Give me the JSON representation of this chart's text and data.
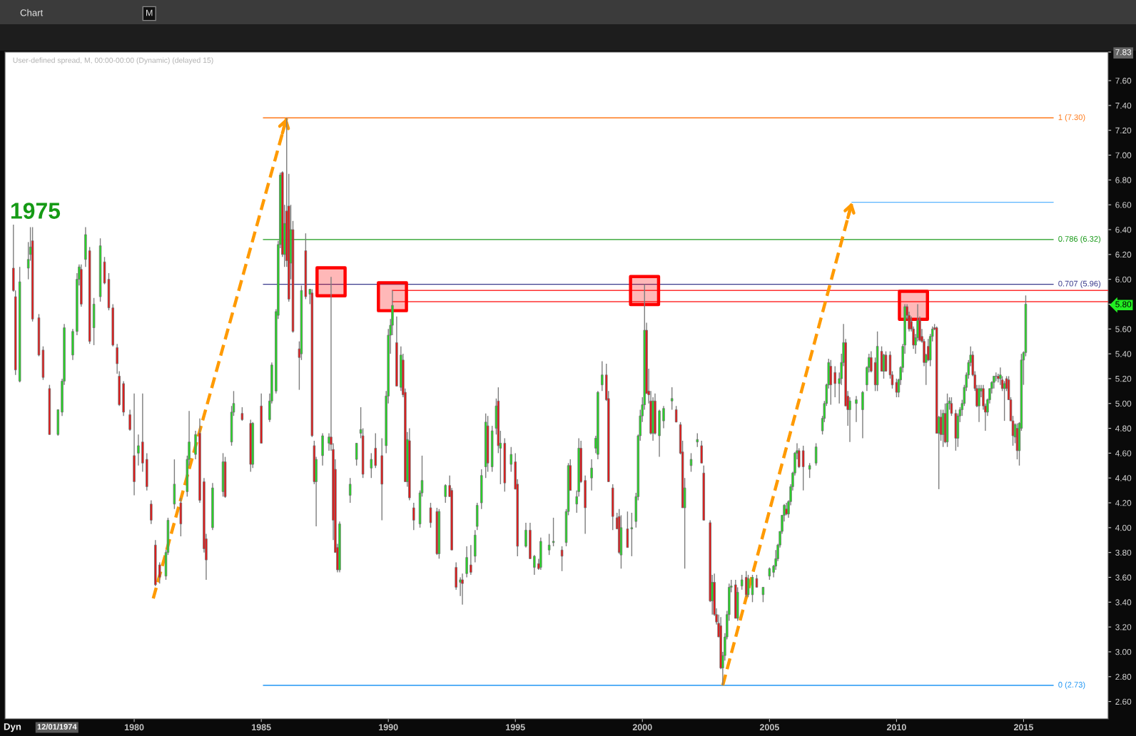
{
  "chart_data": {
    "type": "candlestick",
    "title": "User-defined spread, M, 00:00-00:00 (Dynamic) (delayed 15)",
    "annotations": [
      "1975",
      "Chart",
      "M",
      "Dyn",
      "12/01/1974"
    ],
    "x": [
      "1975-04",
      "1975-05",
      "1975-07",
      "1975-11",
      "1975-12",
      "1976-01",
      "1976-04",
      "1976-06",
      "1976-09",
      "1977-01",
      "1977-03",
      "1977-04",
      "1977-08",
      "1977-10",
      "1977-11",
      "1977-12",
      "1978-02",
      "1978-04",
      "1978-06",
      "1978-09",
      "1978-11",
      "1979-01",
      "1979-03",
      "1979-05",
      "1979-06",
      "1979-08",
      "1979-11",
      "1980-01",
      "1980-03",
      "1980-05",
      "1980-07",
      "1980-09",
      "1980-11",
      "1981-01",
      "1981-04",
      "1981-05",
      "1981-08",
      "1981-11",
      "1982-02",
      "1982-03",
      "1982-06",
      "1982-08",
      "1982-10",
      "1982-11",
      "1983-02",
      "1983-07",
      "1983-08",
      "1983-11",
      "1983-12",
      "1984-04",
      "1984-08",
      "1984-09",
      "1985-01",
      "1985-05",
      "1985-06",
      "1985-08",
      "1985-09",
      "1985-10",
      "1985-11",
      "1985-12",
      "1986-01",
      "1986-02",
      "1986-03",
      "1986-04",
      "1986-07",
      "1986-08",
      "1986-10",
      "1986-12",
      "1987-01",
      "1987-02",
      "1987-03",
      "1987-06",
      "1987-09",
      "1987-10",
      "1987-11",
      "1987-12",
      "1988-01",
      "1988-02",
      "1988-07",
      "1988-10",
      "1988-12",
      "1989-01",
      "1989-05",
      "1989-07",
      "1989-10",
      "1989-12",
      "1990-01",
      "1990-02",
      "1990-03",
      "1990-05",
      "1990-07",
      "1990-08",
      "1990-09",
      "1990-10",
      "1990-11",
      "1991-01",
      "1991-04",
      "1991-05",
      "1991-09",
      "1991-12",
      "1992-01",
      "1992-04",
      "1992-06",
      "1992-07",
      "1992-09",
      "1992-11",
      "1992-12",
      "1993-02",
      "1993-04",
      "1993-06",
      "1993-07",
      "1993-09",
      "1993-11",
      "1993-12",
      "1994-02",
      "1994-04",
      "1994-05",
      "1994-06",
      "1994-08",
      "1994-11",
      "1995-01",
      "1995-02",
      "1995-06",
      "1995-08",
      "1995-10",
      "1995-12",
      "1996-01",
      "1996-05",
      "1996-07",
      "1996-11",
      "1997-01",
      "1997-02",
      "1997-03",
      "1997-06",
      "1997-07",
      "1997-08",
      "1997-10",
      "1998-01",
      "1998-03",
      "1998-04",
      "1998-06",
      "1998-08",
      "1998-09",
      "1998-11",
      "1999-01",
      "1999-02",
      "1999-03",
      "1999-06",
      "1999-08",
      "1999-10",
      "1999-11",
      "1999-12",
      "2000-01",
      "2000-02",
      "2000-03",
      "2000-04",
      "2000-05",
      "2000-06",
      "2000-07",
      "2000-09",
      "2000-11",
      "2001-03",
      "2001-05",
      "2001-07",
      "2001-08",
      "2001-09",
      "2001-12",
      "2002-03",
      "2002-05",
      "2002-06",
      "2002-09",
      "2002-10",
      "2002-11",
      "2002-12",
      "2003-01",
      "2003-02",
      "2003-03",
      "2003-04",
      "2003-05",
      "2003-06",
      "2003-07",
      "2003-09",
      "2003-10",
      "2003-12",
      "2004-02",
      "2004-03",
      "2004-05",
      "2004-07",
      "2004-10",
      "2005-01",
      "2005-03",
      "2005-04",
      "2005-05",
      "2005-06",
      "2005-07",
      "2005-08",
      "2005-09",
      "2005-10",
      "2005-11",
      "2005-12",
      "2006-01",
      "2006-02",
      "2006-03",
      "2006-05",
      "2006-08",
      "2006-11",
      "2007-02",
      "2007-03",
      "2007-04",
      "2007-05",
      "2007-06",
      "2007-08",
      "2007-10",
      "2007-11",
      "2007-12",
      "2008-01",
      "2008-02",
      "2008-03",
      "2008-06",
      "2008-09",
      "2008-11",
      "2008-12",
      "2009-01",
      "2009-03",
      "2009-04",
      "2009-06",
      "2009-07",
      "2009-08",
      "2009-10",
      "2009-11",
      "2010-01",
      "2010-02",
      "2010-03",
      "2010-04",
      "2010-05",
      "2010-06",
      "2010-07",
      "2010-08",
      "2010-09",
      "2010-10",
      "2010-11",
      "2010-12",
      "2011-01",
      "2011-02",
      "2011-03",
      "2011-04",
      "2011-05",
      "2011-06",
      "2011-07",
      "2011-08",
      "2011-09",
      "2011-10",
      "2011-11",
      "2011-12",
      "2012-01",
      "2012-02",
      "2012-03",
      "2012-05",
      "2012-06",
      "2012-07",
      "2012-08",
      "2012-09",
      "2012-10",
      "2012-11",
      "2012-12",
      "2013-01",
      "2013-02",
      "2013-03",
      "2013-04",
      "2013-05",
      "2013-06",
      "2013-07",
      "2013-08",
      "2013-09",
      "2013-10",
      "2013-11",
      "2013-12",
      "2014-01",
      "2014-02",
      "2014-03",
      "2014-04",
      "2014-05",
      "2014-06",
      "2014-07",
      "2014-08",
      "2014-09",
      "2014-10",
      "2014-11",
      "2014-12",
      "2015-01",
      "2015-02"
    ],
    "ohlc": [
      [
        6.09,
        6.44,
        5.9,
        5.91
      ],
      [
        5.86,
        5.91,
        5.23,
        5.27
      ],
      [
        5.18,
        6.1,
        5.17,
        5.98
      ],
      [
        6.09,
        6.3,
        6.0,
        6.16
      ],
      [
        6.2,
        6.42,
        6.15,
        6.26
      ],
      [
        6.31,
        6.42,
        5.66,
        5.68
      ],
      [
        5.69,
        5.72,
        5.38,
        5.39
      ],
      [
        5.43,
        5.46,
        5.19,
        5.21
      ],
      [
        5.12,
        5.15,
        4.75,
        4.75
      ],
      [
        4.75,
        4.95,
        4.74,
        4.95
      ],
      [
        4.93,
        5.2,
        4.9,
        5.18
      ],
      [
        5.18,
        5.64,
        5.15,
        5.61
      ],
      [
        5.39,
        5.6,
        5.35,
        5.58
      ],
      [
        5.58,
        6.05,
        5.55,
        6.0
      ],
      [
        6.0,
        6.12,
        5.95,
        6.1
      ],
      [
        6.08,
        6.12,
        5.78,
        5.8
      ],
      [
        6.16,
        6.42,
        6.1,
        6.36
      ],
      [
        6.23,
        6.26,
        5.48,
        5.5
      ],
      [
        5.61,
        5.85,
        5.47,
        5.8
      ],
      [
        5.86,
        6.33,
        5.82,
        6.27
      ],
      [
        6.14,
        6.18,
        5.96,
        5.97
      ],
      [
        6.0,
        6.05,
        5.75,
        5.77
      ],
      [
        5.77,
        5.8,
        5.46,
        5.47
      ],
      [
        5.45,
        5.48,
        5.24,
        5.32
      ],
      [
        5.22,
        5.26,
        4.98,
        4.99
      ],
      [
        5.16,
        5.18,
        4.9,
        4.93
      ],
      [
        4.91,
        4.95,
        4.78,
        4.79
      ],
      [
        4.58,
        5.08,
        4.26,
        4.37
      ],
      [
        4.6,
        4.75,
        4.5,
        4.66
      ],
      [
        4.69,
        5.08,
        4.45,
        4.52
      ],
      [
        4.55,
        4.6,
        4.3,
        4.33
      ],
      [
        4.19,
        4.22,
        4.03,
        4.06
      ],
      [
        3.86,
        3.9,
        3.53,
        3.54
      ],
      [
        3.7,
        3.72,
        3.55,
        3.6
      ],
      [
        3.61,
        3.82,
        3.58,
        3.8
      ],
      [
        3.8,
        4.08,
        3.78,
        4.06
      ],
      [
        4.19,
        4.55,
        4.15,
        4.35
      ],
      [
        4.2,
        4.24,
        3.93,
        4.03
      ],
      [
        4.29,
        4.58,
        4.25,
        4.55
      ],
      [
        4.55,
        4.94,
        4.5,
        4.69
      ],
      [
        4.59,
        4.78,
        4.55,
        4.75
      ],
      [
        4.76,
        4.88,
        4.2,
        4.22
      ],
      [
        4.37,
        4.4,
        3.8,
        3.83
      ],
      [
        3.91,
        3.95,
        3.58,
        3.74
      ],
      [
        4.0,
        4.36,
        3.98,
        4.32
      ],
      [
        4.29,
        4.6,
        4.25,
        4.53
      ],
      [
        4.53,
        4.57,
        4.24,
        4.25
      ],
      [
        4.69,
        4.98,
        4.66,
        4.93
      ],
      [
        4.93,
        5.1,
        4.9,
        5.0
      ],
      [
        4.92,
        4.97,
        4.86,
        4.87
      ],
      [
        4.84,
        4.87,
        4.45,
        4.51
      ],
      [
        4.51,
        4.85,
        4.48,
        4.84
      ],
      [
        4.98,
        5.08,
        4.68,
        4.68
      ],
      [
        4.87,
        5.08,
        4.85,
        5.02
      ],
      [
        5.02,
        5.33,
        5.0,
        5.31
      ],
      [
        5.1,
        5.76,
        5.08,
        5.74
      ],
      [
        5.71,
        6.31,
        5.68,
        6.28
      ],
      [
        6.28,
        6.86,
        6.25,
        6.84
      ],
      [
        6.86,
        6.87,
        6.18,
        6.2
      ],
      [
        6.2,
        6.6,
        6.1,
        6.45
      ],
      [
        6.55,
        7.3,
        6.1,
        6.15
      ],
      [
        6.59,
        6.85,
        5.82,
        5.84
      ],
      [
        6.13,
        6.6,
        6.0,
        6.4
      ],
      [
        6.4,
        6.47,
        5.57,
        5.58
      ],
      [
        5.44,
        5.5,
        5.11,
        5.37
      ],
      [
        5.4,
        5.95,
        5.35,
        5.91
      ],
      [
        6.23,
        6.37,
        5.84,
        5.86
      ],
      [
        5.88,
        5.92,
        5.8,
        5.92
      ],
      [
        5.89,
        5.92,
        4.73,
        4.74
      ],
      [
        4.66,
        4.7,
        4.35,
        4.37
      ],
      [
        4.37,
        4.57,
        4.01,
        4.55
      ],
      [
        4.58,
        4.76,
        4.5,
        4.74
      ],
      [
        4.68,
        4.76,
        4.62,
        4.73
      ],
      [
        4.73,
        6.02,
        4.62,
        4.67
      ],
      [
        4.63,
        4.68,
        3.9,
        4.06
      ],
      [
        4.47,
        4.55,
        3.8,
        3.8
      ],
      [
        3.84,
        3.87,
        3.64,
        3.66
      ],
      [
        3.66,
        4.05,
        3.64,
        4.03
      ],
      [
        4.26,
        4.4,
        4.2,
        4.35
      ],
      [
        4.55,
        4.68,
        4.5,
        4.68
      ],
      [
        4.76,
        4.97,
        4.72,
        4.79
      ],
      [
        4.74,
        4.8,
        4.4,
        4.43
      ],
      [
        4.48,
        4.6,
        4.4,
        4.55
      ],
      [
        4.64,
        4.76,
        4.48,
        4.5
      ],
      [
        4.58,
        4.72,
        4.06,
        4.35
      ],
      [
        4.66,
        5.1,
        4.6,
        5.06
      ],
      [
        5.06,
        5.6,
        5.0,
        5.55
      ],
      [
        5.55,
        5.68,
        5.4,
        5.63
      ],
      [
        5.63,
        5.91,
        5.55,
        5.79
      ],
      [
        5.49,
        5.7,
        5.14,
        5.14
      ],
      [
        5.13,
        5.46,
        5.1,
        5.39
      ],
      [
        5.35,
        5.4,
        5.05,
        5.07
      ],
      [
        5.09,
        5.12,
        4.37,
        4.37
      ],
      [
        4.37,
        4.77,
        4.33,
        4.71
      ],
      [
        4.7,
        4.8,
        4.22,
        4.24
      ],
      [
        4.16,
        4.2,
        3.98,
        4.06
      ],
      [
        4.03,
        4.3,
        4.0,
        4.28
      ],
      [
        4.28,
        4.58,
        4.25,
        4.38
      ],
      [
        4.16,
        4.2,
        4.0,
        4.04
      ],
      [
        4.13,
        4.16,
        3.78,
        3.79
      ],
      [
        3.79,
        4.15,
        3.75,
        4.13
      ],
      [
        4.25,
        4.35,
        4.2,
        4.34
      ],
      [
        4.34,
        4.42,
        4.25,
        4.25
      ],
      [
        4.3,
        4.32,
        3.82,
        3.82
      ],
      [
        3.68,
        3.72,
        3.5,
        3.52
      ],
      [
        3.56,
        3.6,
        3.45,
        3.58
      ],
      [
        3.58,
        3.63,
        3.38,
        3.55
      ],
      [
        3.63,
        3.85,
        3.6,
        3.76
      ],
      [
        3.7,
        3.86,
        3.62,
        3.64
      ],
      [
        3.77,
        3.98,
        3.72,
        3.94
      ],
      [
        4.01,
        4.2,
        3.98,
        4.18
      ],
      [
        4.2,
        4.47,
        4.15,
        4.42
      ],
      [
        4.49,
        4.92,
        4.4,
        4.85
      ],
      [
        4.82,
        4.9,
        4.45,
        4.52
      ],
      [
        4.49,
        4.82,
        4.45,
        4.78
      ],
      [
        4.8,
        5.04,
        4.75,
        4.98
      ],
      [
        5.02,
        5.13,
        4.6,
        4.66
      ],
      [
        4.64,
        4.78,
        4.35,
        4.68
      ],
      [
        4.68,
        4.72,
        4.29,
        4.36
      ],
      [
        4.51,
        4.65,
        4.45,
        4.59
      ],
      [
        4.53,
        4.6,
        4.31,
        4.31
      ],
      [
        4.35,
        4.39,
        3.77,
        3.85
      ],
      [
        3.85,
        4.04,
        3.84,
        3.98
      ],
      [
        3.98,
        4.04,
        3.75,
        3.75
      ],
      [
        3.68,
        3.78,
        3.62,
        3.77
      ],
      [
        3.71,
        3.75,
        3.66,
        3.67
      ],
      [
        3.68,
        3.92,
        3.66,
        3.89
      ],
      [
        3.82,
        3.95,
        3.78,
        3.86
      ],
      [
        3.88,
        4.08,
        3.85,
        3.89
      ],
      [
        3.82,
        3.85,
        3.65,
        3.77
      ],
      [
        3.88,
        4.15,
        3.85,
        4.13
      ],
      [
        4.13,
        4.52,
        4.1,
        4.5
      ],
      [
        4.5,
        4.55,
        4.3,
        4.3
      ],
      [
        4.19,
        4.3,
        4.12,
        4.25
      ],
      [
        4.29,
        4.72,
        4.25,
        4.64
      ],
      [
        4.64,
        4.7,
        4.36,
        4.37
      ],
      [
        4.38,
        4.42,
        3.95,
        4.16
      ],
      [
        4.4,
        4.55,
        4.3,
        4.48
      ],
      [
        4.64,
        4.74,
        4.6,
        4.72
      ],
      [
        4.59,
        5.1,
        4.55,
        5.09
      ],
      [
        5.15,
        5.34,
        5.1,
        5.23
      ],
      [
        5.23,
        5.32,
        5.02,
        5.03
      ],
      [
        5.04,
        5.1,
        4.37,
        4.37
      ],
      [
        4.32,
        4.35,
        3.98,
        4.09
      ],
      [
        4.08,
        4.12,
        3.99,
        3.99
      ],
      [
        4.09,
        4.15,
        3.79,
        3.8
      ],
      [
        3.78,
        4.1,
        3.67,
        4.0
      ],
      [
        3.99,
        4.13,
        3.84,
        3.84
      ],
      [
        3.99,
        4.12,
        3.77,
        4.0
      ],
      [
        4.05,
        4.28,
        4.0,
        4.25
      ],
      [
        4.25,
        4.75,
        4.22,
        4.74
      ],
      [
        4.74,
        4.95,
        4.7,
        4.9
      ],
      [
        4.9,
        5.05,
        4.85,
        4.99
      ],
      [
        4.99,
        5.96,
        4.95,
        5.59
      ],
      [
        5.59,
        5.65,
        5.08,
        5.08
      ],
      [
        5.1,
        5.28,
        5.0,
        5.07
      ],
      [
        5.02,
        5.1,
        4.75,
        4.76
      ],
      [
        4.76,
        5.05,
        4.7,
        5.02
      ],
      [
        5.02,
        5.08,
        4.75,
        4.76
      ],
      [
        4.74,
        4.95,
        4.57,
        4.94
      ],
      [
        4.86,
        4.98,
        4.8,
        4.96
      ],
      [
        5.02,
        5.13,
        4.95,
        5.04
      ],
      [
        4.95,
        4.98,
        4.85,
        4.85
      ],
      [
        4.83,
        4.85,
        4.59,
        4.6
      ],
      [
        4.61,
        4.7,
        4.16,
        4.16
      ],
      [
        4.16,
        4.4,
        3.67,
        4.32
      ],
      [
        4.5,
        4.6,
        4.45,
        4.55
      ],
      [
        4.69,
        4.76,
        4.65,
        4.71
      ],
      [
        4.66,
        4.7,
        4.52,
        4.52
      ],
      [
        4.44,
        4.5,
        4.06,
        4.06
      ],
      [
        4.04,
        4.06,
        3.4,
        3.41
      ],
      [
        3.41,
        3.62,
        3.3,
        3.56
      ],
      [
        3.56,
        3.63,
        3.29,
        3.3
      ],
      [
        3.3,
        3.35,
        3.22,
        3.24
      ],
      [
        3.23,
        3.3,
        3.12,
        3.12
      ],
      [
        3.21,
        3.28,
        2.86,
        2.87
      ],
      [
        2.87,
        3.0,
        2.73,
        2.97
      ],
      [
        2.97,
        3.15,
        2.93,
        3.12
      ],
      [
        3.12,
        3.33,
        3.1,
        3.3
      ],
      [
        3.3,
        3.55,
        3.25,
        3.52
      ],
      [
        3.52,
        3.58,
        3.48,
        3.53
      ],
      [
        3.54,
        3.58,
        3.27,
        3.27
      ],
      [
        3.27,
        3.52,
        3.25,
        3.48
      ],
      [
        3.53,
        3.62,
        3.5,
        3.58
      ],
      [
        3.6,
        3.65,
        3.44,
        3.46
      ],
      [
        3.46,
        3.62,
        3.44,
        3.59
      ],
      [
        3.46,
        3.62,
        3.4,
        3.6
      ],
      [
        3.59,
        3.62,
        3.52,
        3.52
      ],
      [
        3.46,
        3.52,
        3.4,
        3.52
      ],
      [
        3.61,
        3.68,
        3.58,
        3.67
      ],
      [
        3.64,
        3.7,
        3.6,
        3.69
      ],
      [
        3.69,
        3.82,
        3.66,
        3.75
      ],
      [
        3.75,
        3.87,
        3.73,
        3.86
      ],
      [
        3.86,
        3.97,
        3.84,
        3.97
      ],
      [
        3.97,
        4.1,
        3.95,
        4.1
      ],
      [
        4.1,
        4.19,
        4.05,
        4.18
      ],
      [
        4.15,
        4.2,
        4.1,
        4.11
      ],
      [
        4.11,
        4.22,
        4.08,
        4.21
      ],
      [
        4.21,
        4.35,
        4.18,
        4.33
      ],
      [
        4.33,
        4.45,
        4.3,
        4.44
      ],
      [
        4.44,
        4.61,
        4.42,
        4.6
      ],
      [
        4.6,
        4.68,
        4.55,
        4.62
      ],
      [
        4.62,
        4.64,
        4.48,
        4.49
      ],
      [
        4.62,
        4.66,
        4.3,
        4.49
      ],
      [
        4.47,
        4.52,
        4.4,
        4.5
      ],
      [
        4.52,
        4.68,
        4.5,
        4.65
      ],
      [
        4.78,
        4.9,
        4.75,
        4.88
      ],
      [
        4.88,
        5.02,
        4.85,
        5.0
      ],
      [
        5.0,
        5.16,
        4.98,
        5.15
      ],
      [
        5.15,
        5.36,
        5.12,
        5.33
      ],
      [
        5.3,
        5.35,
        4.99,
        5.15
      ],
      [
        5.25,
        5.3,
        5.05,
        5.16
      ],
      [
        5.16,
        5.25,
        5.0,
        5.2
      ],
      [
        5.2,
        5.4,
        5.15,
        5.33
      ],
      [
        5.33,
        5.64,
        5.3,
        5.49
      ],
      [
        5.49,
        5.52,
        4.98,
        4.98
      ],
      [
        5.06,
        5.1,
        4.82,
        4.95
      ],
      [
        4.95,
        5.05,
        4.69,
        5.02
      ],
      [
        5.0,
        5.06,
        4.85,
        5.03
      ],
      [
        4.95,
        5.1,
        4.72,
        5.09
      ],
      [
        5.15,
        5.3,
        5.1,
        5.29
      ],
      [
        5.29,
        5.4,
        5.25,
        5.37
      ],
      [
        5.37,
        5.42,
        5.25,
        5.26
      ],
      [
        5.33,
        5.37,
        5.1,
        5.15
      ],
      [
        5.15,
        5.58,
        5.1,
        5.46
      ],
      [
        5.42,
        5.46,
        5.26,
        5.26
      ],
      [
        5.26,
        5.4,
        5.2,
        5.39
      ],
      [
        5.39,
        5.42,
        5.26,
        5.26
      ],
      [
        5.39,
        5.42,
        5.2,
        5.23
      ],
      [
        5.23,
        5.26,
        5.12,
        5.15
      ],
      [
        5.17,
        5.2,
        5.05,
        5.09
      ],
      [
        5.09,
        5.2,
        5.05,
        5.19
      ],
      [
        5.19,
        5.3,
        5.15,
        5.29
      ],
      [
        5.29,
        5.48,
        5.25,
        5.46
      ],
      [
        5.47,
        5.8,
        5.4,
        5.78
      ],
      [
        5.78,
        5.8,
        5.68,
        5.71
      ],
      [
        5.71,
        5.74,
        5.58,
        5.6
      ],
      [
        5.66,
        5.7,
        5.58,
        5.6
      ],
      [
        5.6,
        5.62,
        5.44,
        5.47
      ],
      [
        5.47,
        5.56,
        5.4,
        5.53
      ],
      [
        5.53,
        5.8,
        5.5,
        5.67
      ],
      [
        5.67,
        5.7,
        5.5,
        5.51
      ],
      [
        5.54,
        5.6,
        5.49,
        5.5
      ],
      [
        5.5,
        5.52,
        5.3,
        5.33
      ],
      [
        5.33,
        5.4,
        5.15,
        5.39
      ],
      [
        5.46,
        5.52,
        5.34,
        5.35
      ],
      [
        5.35,
        5.56,
        5.3,
        5.54
      ],
      [
        5.54,
        5.62,
        5.5,
        5.6
      ],
      [
        5.61,
        5.64,
        5.59,
        5.6
      ],
      [
        5.61,
        5.62,
        4.76,
        4.76
      ],
      [
        4.76,
        4.9,
        4.31,
        4.89
      ],
      [
        4.89,
        4.95,
        4.7,
        4.75
      ],
      [
        4.75,
        4.95,
        4.65,
        4.92
      ],
      [
        4.92,
        5.0,
        4.68,
        4.69
      ],
      [
        4.69,
        5.08,
        4.65,
        5.0
      ],
      [
        5.0,
        5.05,
        4.95,
        5.02
      ],
      [
        5.0,
        5.05,
        4.9,
        4.92
      ],
      [
        4.92,
        4.95,
        4.62,
        4.72
      ],
      [
        4.72,
        4.92,
        4.65,
        4.9
      ],
      [
        4.9,
        4.97,
        4.85,
        4.95
      ],
      [
        4.95,
        5.03,
        4.9,
        5.0
      ],
      [
        5.0,
        5.15,
        4.98,
        5.13
      ],
      [
        5.13,
        5.25,
        5.1,
        5.23
      ],
      [
        5.23,
        5.35,
        5.2,
        5.33
      ],
      [
        5.33,
        5.46,
        5.3,
        5.39
      ],
      [
        5.39,
        5.42,
        5.22,
        5.23
      ],
      [
        5.23,
        5.26,
        5.1,
        5.12
      ],
      [
        5.12,
        5.15,
        4.97,
        4.98
      ],
      [
        4.98,
        5.15,
        4.85,
        5.12
      ],
      [
        5.1,
        5.15,
        5.05,
        5.12
      ],
      [
        5.12,
        5.15,
        4.95,
        4.98
      ],
      [
        4.98,
        5.0,
        4.78,
        4.93
      ],
      [
        4.93,
        5.04,
        4.9,
        5.03
      ],
      [
        5.03,
        5.12,
        5.0,
        5.12
      ],
      [
        5.12,
        5.18,
        5.08,
        5.17
      ],
      [
        5.17,
        5.22,
        5.12,
        5.22
      ],
      [
        5.22,
        5.25,
        5.18,
        5.22
      ],
      [
        5.22,
        5.24,
        5.17,
        5.2
      ],
      [
        5.2,
        5.29,
        5.15,
        5.23
      ],
      [
        5.19,
        5.22,
        5.1,
        5.12
      ],
      [
        5.12,
        5.18,
        4.86,
        5.16
      ],
      [
        5.2,
        5.22,
        5.1,
        5.12
      ],
      [
        5.19,
        5.22,
        5.03,
        5.03
      ],
      [
        5.03,
        5.05,
        4.86,
        4.86
      ],
      [
        4.86,
        4.9,
        4.66,
        4.74
      ],
      [
        4.73,
        4.84,
        4.68,
        4.83
      ],
      [
        4.8,
        4.84,
        4.55,
        4.62
      ],
      [
        4.62,
        4.85,
        4.5,
        4.84
      ],
      [
        4.8,
        5.4,
        4.78,
        5.35
      ],
      [
        5.35,
        5.42,
        5.15,
        5.41
      ],
      [
        5.41,
        5.87,
        5.38,
        5.8
      ]
    ],
    "series": [
      {
        "name": "1 (7.30)",
        "type": "line",
        "color": "#ff7a1a",
        "x": [
          "1985-02",
          "2016-03"
        ],
        "values": [
          7.3,
          7.3
        ]
      },
      {
        "name": "0.786 (6.32)",
        "type": "line",
        "color": "#1a9a1a",
        "x": [
          "1985-02",
          "2016-03"
        ],
        "values": [
          6.32,
          6.32
        ]
      },
      {
        "name": "0.707 (5.96)",
        "type": "line",
        "color": "#3a3a8c",
        "x": [
          "1985-02",
          "2016-03"
        ],
        "values": [
          5.96,
          5.96
        ]
      },
      {
        "name": "0 (2.73)",
        "type": "line",
        "color": "#2196f3",
        "x": [
          "1985-02",
          "2016-03"
        ],
        "values": [
          2.73,
          2.73
        ]
      },
      {
        "type": "line",
        "color": "#5ab4ff",
        "x": [
          "2008-04",
          "2016-03"
        ],
        "values": [
          6.62,
          6.62
        ]
      },
      {
        "type": "line",
        "color": "#ff3030",
        "x": [
          "1990-03",
          "2018-05"
        ],
        "values": [
          5.91,
          5.91
        ]
      },
      {
        "type": "line",
        "color": "#ff3030",
        "x": [
          "1990-03",
          "2018-05"
        ],
        "values": [
          5.82,
          5.82
        ]
      },
      {
        "type": "line",
        "color": "#ff9a00",
        "line_style": "dashed",
        "x": [
          "1980-10",
          "1986-01"
        ],
        "values": [
          3.43,
          7.3
        ]
      },
      {
        "type": "line",
        "color": "#ff9a00",
        "line_style": "dashed",
        "x": [
          "2003-03",
          "2008-04"
        ],
        "values": [
          2.73,
          6.62
        ]
      },
      {
        "type": "scatter",
        "color": "#ff0000",
        "marker": "square",
        "x": [
          "1987-10",
          "1990-03",
          "2000-02",
          "2010-09"
        ],
        "values": [
          5.98,
          5.86,
          5.91,
          5.79
        ]
      }
    ],
    "xlim": [
      "1974-12",
      "2018-05"
    ],
    "xticks": [
      "1980",
      "1985",
      "1990",
      "1995",
      "2000",
      "2005",
      "2010",
      "2015"
    ],
    "ylim": [
      2.46,
      7.83
    ],
    "yticks": [
      {
        "value": 2.6,
        "label": "2.60"
      },
      {
        "value": 2.8,
        "label": "2.80"
      },
      {
        "value": 3.0,
        "label": "3.00"
      },
      {
        "value": 3.2,
        "label": "3.20"
      },
      {
        "value": 3.4,
        "label": "3.40"
      },
      {
        "value": 3.6,
        "label": "3.60"
      },
      {
        "value": 3.8,
        "label": "3.80"
      },
      {
        "value": 4.0,
        "label": "4.00"
      },
      {
        "value": 4.2,
        "label": "4.20"
      },
      {
        "value": 4.4,
        "label": "4.40"
      },
      {
        "value": 4.6,
        "label": "4.60"
      },
      {
        "value": 4.8,
        "label": "4.80"
      },
      {
        "value": 5.0,
        "label": "5.00"
      },
      {
        "value": 5.2,
        "label": "5.20"
      },
      {
        "value": 5.4,
        "label": "5.40"
      },
      {
        "value": 5.6,
        "label": "5.60"
      },
      {
        "value": 5.8,
        "label": "5.80"
      },
      {
        "value": 6.0,
        "label": "6.00"
      },
      {
        "value": 6.2,
        "label": "6.20"
      },
      {
        "value": 6.4,
        "label": "6.40"
      },
      {
        "value": 6.6,
        "label": "6.60"
      },
      {
        "value": 6.8,
        "label": "6.80"
      },
      {
        "value": 7.0,
        "label": "7.00"
      },
      {
        "value": 7.2,
        "label": "7.20"
      },
      {
        "value": 7.4,
        "label": "7.40"
      },
      {
        "value": 7.6,
        "label": "7.60"
      },
      {
        "value": 7.83,
        "label": "7.83"
      }
    ]
  }
}
